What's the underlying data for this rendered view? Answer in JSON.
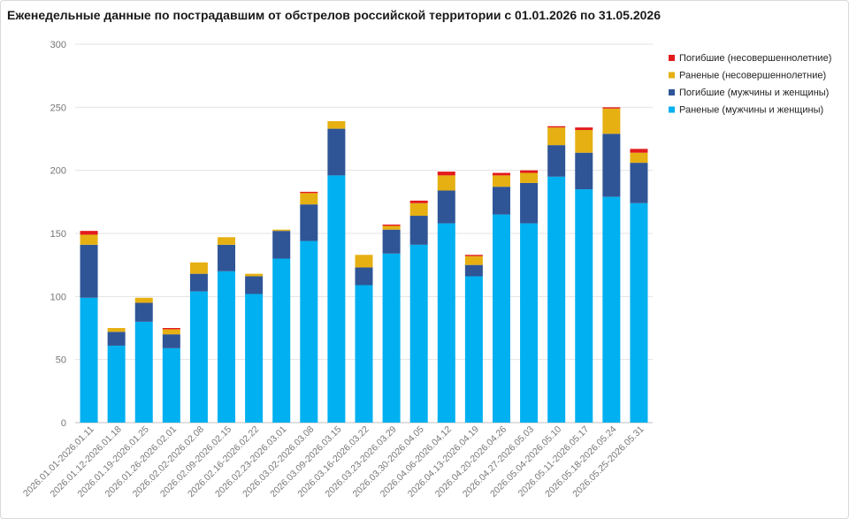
{
  "chart_data": {
    "type": "bar",
    "stacked": true,
    "title": "Еженедельные данные по пострадавшим от обстрелов российской территории с 01.01.2026 по 31.05.2026",
    "xlabel": "",
    "ylabel": "",
    "ylim": [
      0,
      300
    ],
    "yticks": [
      0,
      50,
      100,
      150,
      200,
      250,
      300
    ],
    "grid": true,
    "legend_position": "top-right",
    "categories": [
      "2026.01.01-2026.01.11",
      "2026.01.12-2026.01.18",
      "2026.01.19-2026.01.25",
      "2026.01.26-2026.02.01",
      "2026.02.02-2026.02.08",
      "2026.02.09-2026.02.15",
      "2026.02.16-2026.02.22",
      "2026.02.23-2026.03.01",
      "2026.03.02-2026.03.08",
      "2026.03.09-2026.03.15",
      "2026.03.16-2026.03.22",
      "2026.03.23-2026.03.29",
      "2026.03.30-2026.04.05",
      "2026.04.06-2026.04.12",
      "2026.04.13-2026.04.19",
      "2026.04.20-2026.04.26",
      "2026.04.27-2026.05.03",
      "2026.05.04-2026.05.10",
      "2026.05.11-2026.05.17",
      "2026.05.18-2026.05.24",
      "2026.05.25-2026.05.31"
    ],
    "series": [
      {
        "name": "Раненые (мужчины и женщины)",
        "color": "#00b0f0",
        "values": [
          99,
          61,
          80,
          59,
          104,
          120,
          102,
          130,
          144,
          196,
          109,
          134,
          141,
          158,
          116,
          165,
          158,
          195,
          185,
          179,
          174
        ]
      },
      {
        "name": "Погибшие (мужчины и женщины)",
        "color": "#2f5597",
        "values": [
          42,
          11,
          15,
          11,
          14,
          21,
          14,
          22,
          29,
          37,
          14,
          19,
          23,
          26,
          9,
          22,
          32,
          25,
          29,
          50,
          32
        ]
      },
      {
        "name": "Раненые (несовершеннолетние)",
        "color": "#e6b012",
        "values": [
          8,
          3,
          4,
          4,
          9,
          6,
          2,
          1,
          9,
          6,
          10,
          3,
          10,
          12,
          7,
          9,
          8,
          14,
          18,
          20,
          8
        ]
      },
      {
        "name": "Погибшие (несовершеннолетние)",
        "color": "#e31a1c",
        "values": [
          3,
          0,
          0,
          1,
          0,
          0,
          0,
          0,
          1,
          0,
          0,
          1,
          2,
          3,
          1,
          2,
          2,
          1,
          2,
          1,
          3
        ]
      }
    ],
    "legend_order": [
      "Погибшие (несовершеннолетние)",
      "Раненые (несовершеннолетние)",
      "Погибшие (мужчины и женщины)",
      "Раненые (мужчины и женщины)"
    ]
  }
}
